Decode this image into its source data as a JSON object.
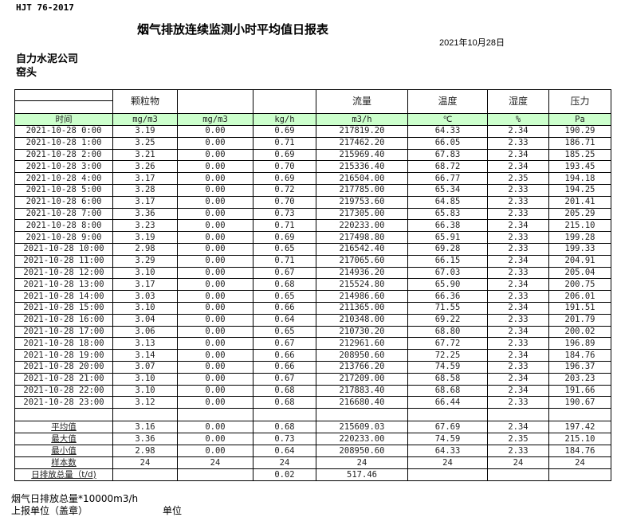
{
  "header": {
    "standard": "HJT  76-2017",
    "title": "烟气排放连续监测小时平均值日报表",
    "date": "2021年10月28日",
    "company": "自力水泥公司",
    "unit": "窑头"
  },
  "columns": [
    {
      "name": "",
      "unit": "时间"
    },
    {
      "name": "颗粒物",
      "unit": "mg/m3"
    },
    {
      "name": "",
      "unit": "mg/m3"
    },
    {
      "name": "",
      "unit": "kg/h"
    },
    {
      "name": "流量",
      "unit": "m3/h"
    },
    {
      "name": "温度",
      "unit": "℃"
    },
    {
      "name": "湿度",
      "unit": "%"
    },
    {
      "name": "压力",
      "unit": "Pa"
    }
  ],
  "rows": [
    [
      "2021-10-28 0:00",
      "3.19",
      "0.00",
      "0.69",
      "217819.20",
      "64.33",
      "2.34",
      "190.29"
    ],
    [
      "2021-10-28 1:00",
      "3.25",
      "0.00",
      "0.71",
      "217462.20",
      "66.05",
      "2.33",
      "186.71"
    ],
    [
      "2021-10-28 2:00",
      "3.21",
      "0.00",
      "0.69",
      "215969.40",
      "67.83",
      "2.34",
      "185.25"
    ],
    [
      "2021-10-28 3:00",
      "3.26",
      "0.00",
      "0.70",
      "215336.40",
      "68.72",
      "2.34",
      "193.45"
    ],
    [
      "2021-10-28 4:00",
      "3.17",
      "0.00",
      "0.69",
      "216504.00",
      "66.77",
      "2.35",
      "194.18"
    ],
    [
      "2021-10-28 5:00",
      "3.28",
      "0.00",
      "0.72",
      "217785.00",
      "65.34",
      "2.33",
      "194.25"
    ],
    [
      "2021-10-28 6:00",
      "3.17",
      "0.00",
      "0.70",
      "219753.60",
      "64.85",
      "2.33",
      "201.41"
    ],
    [
      "2021-10-28 7:00",
      "3.36",
      "0.00",
      "0.73",
      "217305.00",
      "65.83",
      "2.33",
      "205.29"
    ],
    [
      "2021-10-28 8:00",
      "3.23",
      "0.00",
      "0.71",
      "220233.00",
      "66.38",
      "2.34",
      "215.10"
    ],
    [
      "2021-10-28 9:00",
      "3.19",
      "0.00",
      "0.69",
      "217498.80",
      "65.91",
      "2.33",
      "199.28"
    ],
    [
      "2021-10-28 10:00",
      "2.98",
      "0.00",
      "0.65",
      "216542.40",
      "69.28",
      "2.33",
      "199.33"
    ],
    [
      "2021-10-28 11:00",
      "3.29",
      "0.00",
      "0.71",
      "217065.60",
      "66.15",
      "2.34",
      "204.91"
    ],
    [
      "2021-10-28 12:00",
      "3.10",
      "0.00",
      "0.67",
      "214936.20",
      "67.03",
      "2.33",
      "205.04"
    ],
    [
      "2021-10-28 13:00",
      "3.17",
      "0.00",
      "0.68",
      "215524.80",
      "65.90",
      "2.34",
      "200.75"
    ],
    [
      "2021-10-28 14:00",
      "3.03",
      "0.00",
      "0.65",
      "214986.60",
      "66.36",
      "2.33",
      "206.01"
    ],
    [
      "2021-10-28 15:00",
      "3.10",
      "0.00",
      "0.66",
      "211365.00",
      "71.55",
      "2.34",
      "191.51"
    ],
    [
      "2021-10-28 16:00",
      "3.04",
      "0.00",
      "0.64",
      "210348.00",
      "69.22",
      "2.33",
      "201.79"
    ],
    [
      "2021-10-28 17:00",
      "3.06",
      "0.00",
      "0.65",
      "210730.20",
      "68.80",
      "2.34",
      "200.02"
    ],
    [
      "2021-10-28 18:00",
      "3.13",
      "0.00",
      "0.67",
      "212961.60",
      "67.72",
      "2.33",
      "196.89"
    ],
    [
      "2021-10-28 19:00",
      "3.14",
      "0.00",
      "0.66",
      "208950.60",
      "72.25",
      "2.34",
      "184.76"
    ],
    [
      "2021-10-28 20:00",
      "3.07",
      "0.00",
      "0.66",
      "213766.20",
      "74.59",
      "2.33",
      "196.37"
    ],
    [
      "2021-10-28 21:00",
      "3.10",
      "0.00",
      "0.67",
      "217209.00",
      "68.58",
      "2.34",
      "203.23"
    ],
    [
      "2021-10-28 22:00",
      "3.10",
      "0.00",
      "0.68",
      "217883.40",
      "68.68",
      "2.34",
      "191.66"
    ],
    [
      "2021-10-28 23:00",
      "3.12",
      "0.00",
      "0.68",
      "216680.40",
      "66.44",
      "2.33",
      "190.67"
    ]
  ],
  "summary": [
    [
      "平均值",
      "3.16",
      "0.00",
      "0.68",
      "215609.03",
      "67.69",
      "2.34",
      "197.42"
    ],
    [
      "最大值",
      "3.36",
      "0.00",
      "0.73",
      "220233.00",
      "74.59",
      "2.35",
      "215.10"
    ],
    [
      "最小值",
      "2.98",
      "0.00",
      "0.64",
      "208950.60",
      "64.33",
      "2.33",
      "184.76"
    ],
    [
      "样本数",
      "24",
      "24",
      "24",
      "24",
      "24",
      "24",
      "24"
    ],
    [
      "日排放总量（t/d)",
      "",
      "",
      "0.02",
      "517.46",
      "",
      "",
      ""
    ]
  ],
  "footer": {
    "flue_total": "烟气日排放总量*10000m3/h",
    "reporting_unit": "上报单位（盖章）",
    "unit_label": "单位"
  }
}
